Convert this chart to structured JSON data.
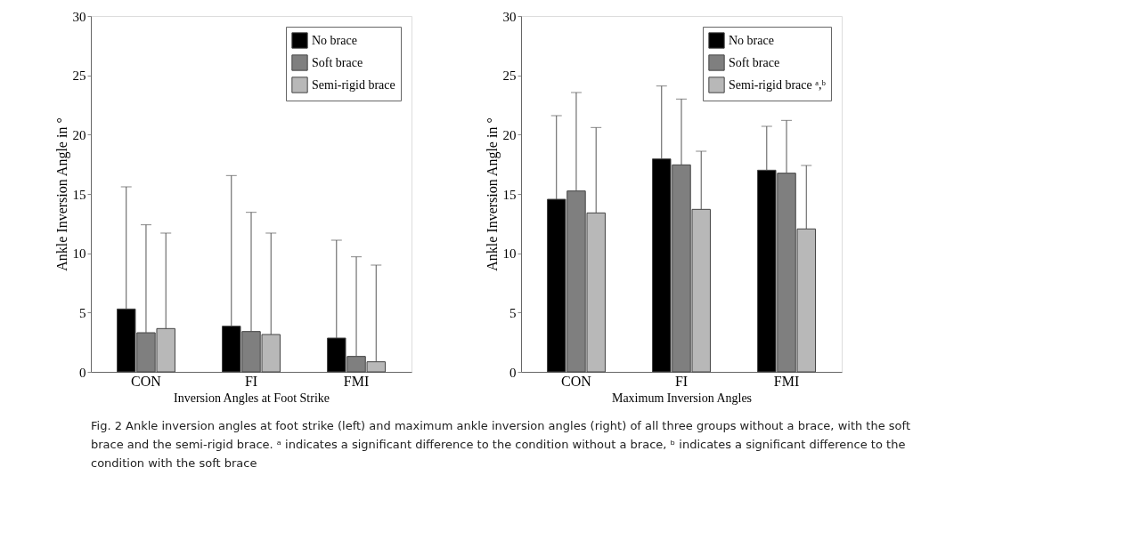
{
  "chart_data": [
    {
      "type": "bar",
      "xlabel": "Inversion Angles at Foot Strike",
      "ylabel": "Ankle Inversion Angle in °",
      "categories": [
        "CON",
        "FI",
        "FMI"
      ],
      "ylim": [
        0,
        30
      ],
      "yticks": [
        0,
        5,
        10,
        15,
        20,
        25,
        30
      ],
      "grid": false,
      "legend": "top right",
      "series": [
        {
          "name": "No brace",
          "color": "#000000",
          "values": [
            5.3,
            3.85,
            2.85
          ],
          "errors": [
            [
              5.3,
              15.6
            ],
            [
              3.85,
              16.55
            ],
            [
              2.85,
              11.1
            ]
          ]
        },
        {
          "name": "Soft brace",
          "color": "#7f7f7f",
          "values": [
            3.3,
            3.4,
            1.3
          ],
          "errors": [
            [
              3.3,
              12.4
            ],
            [
              3.4,
              13.45
            ],
            [
              1.3,
              9.7
            ]
          ]
        },
        {
          "name": "Semi-rigid brace",
          "color": "#b8b8b8",
          "values": [
            3.65,
            3.15,
            0.85
          ],
          "errors": [
            [
              3.65,
              11.7
            ],
            [
              3.15,
              11.7
            ],
            [
              0.85,
              9.0
            ]
          ]
        }
      ],
      "annotations": [
        "Fig. 2 Ankle inversion angles at foot strike (left) and maximum ankle inversion angles (right) of all three groups without a brace, with the soft brace and the semi-rigid brace. ᵃ indicates a significant difference to the condition without a brace, ᵇ indicates a significant difference to the condition with the soft brace"
      ]
    },
    {
      "type": "bar",
      "xlabel": "Maximum Inversion Angles",
      "ylabel": "Ankle Inversion Angle in °",
      "categories": [
        "CON",
        "FI",
        "FMI"
      ],
      "ylim": [
        0,
        30
      ],
      "yticks": [
        0,
        5,
        10,
        15,
        20,
        25,
        30
      ],
      "grid": false,
      "legend": "top right",
      "series": [
        {
          "name": "No brace",
          "color": "#000000",
          "values": [
            14.55,
            17.95,
            17.0
          ],
          "errors": [
            [
              14.55,
              21.6
            ],
            [
              17.95,
              24.1
            ],
            [
              17.0,
              20.7
            ]
          ]
        },
        {
          "name": "Soft brace",
          "color": "#7f7f7f",
          "values": [
            15.25,
            17.45,
            16.75
          ],
          "errors": [
            [
              15.25,
              23.55
            ],
            [
              17.45,
              23.0
            ],
            [
              16.75,
              21.2
            ]
          ]
        },
        {
          "name": "Semi-rigid brace ᵃ,ᵇ",
          "color": "#b8b8b8",
          "values": [
            13.4,
            13.7,
            12.05
          ],
          "errors": [
            [
              13.4,
              20.6
            ],
            [
              13.7,
              18.6
            ],
            [
              12.05,
              17.4
            ]
          ]
        }
      ]
    }
  ]
}
